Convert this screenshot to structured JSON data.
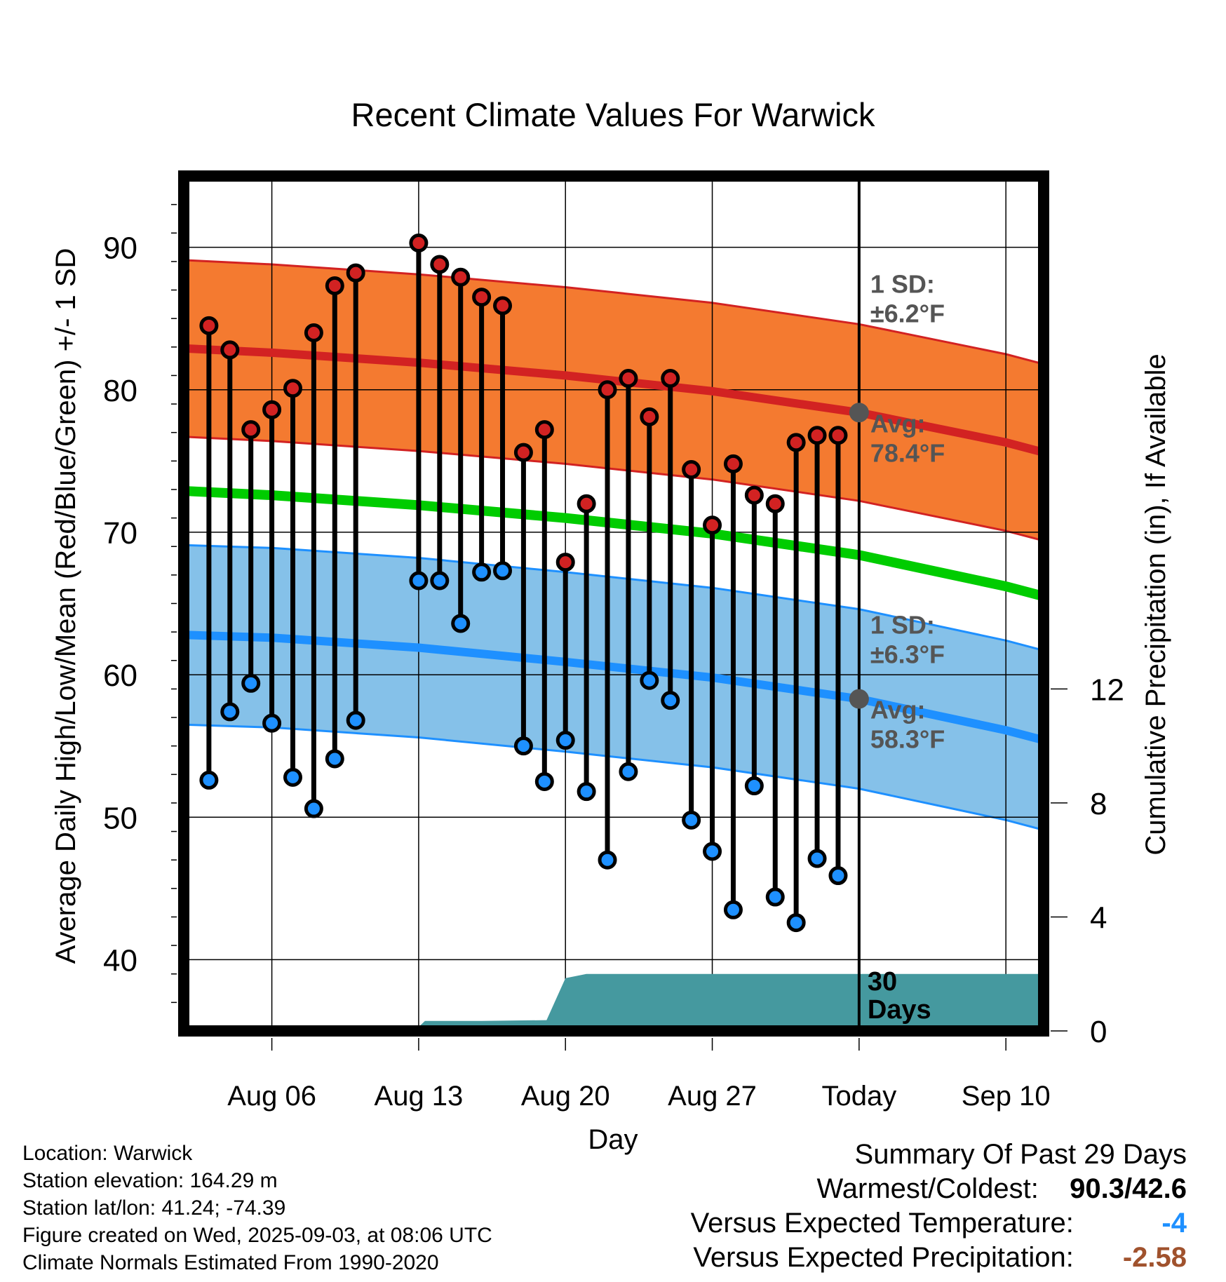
{
  "chart_data": {
    "type": "line",
    "title": "Recent Climate Values For Warwick",
    "xlabel": "Day",
    "ylabel_left": "Average Daily High/Low/Mean (Red/Blue/Green) +/- 1 SD",
    "ylabel_right": "Cumulative Precipitation (in), If Available",
    "x_tick_labels": [
      "Aug 06",
      "Aug 13",
      "Aug 20",
      "Aug 27",
      "Today",
      "Sep 10"
    ],
    "x_tick_days": [
      6,
      13,
      20,
      27,
      34,
      41
    ],
    "x_range_days": [
      1.8,
      42.8
    ],
    "y_left_range": [
      35,
      95
    ],
    "y_left_ticks": [
      40,
      50,
      60,
      70,
      80,
      90
    ],
    "y_right_range": [
      0,
      30
    ],
    "y_right_ticks": [
      0,
      4,
      8,
      12
    ],
    "grid": true,
    "today_day": 34,
    "today_label_value": "30",
    "today_label_unit": "Days",
    "normal_days": [
      1.8,
      6,
      13,
      20,
      27,
      34,
      41,
      42.8
    ],
    "normal_high": [
      82.9,
      82.6,
      81.9,
      81.0,
      79.9,
      78.4,
      76.3,
      75.6
    ],
    "normal_high_sd": 6.2,
    "normal_low": [
      62.8,
      62.6,
      61.9,
      60.9,
      59.8,
      58.3,
      56.1,
      55.4
    ],
    "normal_low_sd": 6.3,
    "normal_mean": [
      72.9,
      72.6,
      71.9,
      71.0,
      69.9,
      68.4,
      66.2,
      65.5
    ],
    "annotations": {
      "high_sd_label": "1 SD:",
      "high_sd_value": "±6.2°F",
      "high_avg_label": "Avg:",
      "high_avg_value": "78.4°F",
      "low_sd_label": "1 SD:",
      "low_sd_value": "±6.3°F",
      "low_avg_label": "Avg:",
      "low_avg_value": "58.3°F"
    },
    "daily_days": [
      3,
      4,
      5,
      6,
      7,
      8,
      9,
      10,
      11,
      13,
      14,
      15,
      16,
      17,
      18,
      19,
      20,
      21,
      22,
      23,
      24,
      25,
      26,
      27,
      28,
      29,
      30,
      31,
      32,
      33
    ],
    "daily_high": [
      84.5,
      82.8,
      77.2,
      78.6,
      80.1,
      84.0,
      87.3,
      88.2,
      null,
      90.3,
      88.8,
      87.9,
      86.5,
      85.9,
      75.6,
      77.2,
      67.9,
      72.0,
      80.0,
      80.8,
      78.1,
      80.8,
      74.4,
      70.5,
      74.8,
      72.6,
      72.0,
      76.3,
      76.8,
      76.8
    ],
    "daily_low": [
      52.6,
      57.4,
      59.4,
      56.6,
      52.8,
      50.6,
      54.1,
      56.8,
      null,
      66.6,
      66.6,
      63.6,
      67.2,
      67.3,
      55.0,
      52.5,
      55.4,
      51.8,
      47.0,
      53.2,
      59.6,
      58.2,
      49.8,
      47.6,
      43.5,
      52.2,
      44.4,
      42.6,
      47.1,
      45.9
    ],
    "precip_days": [
      1.8,
      12.8,
      13.3,
      16,
      19.1,
      20,
      21,
      42.8
    ],
    "precip_cum": [
      0,
      0,
      0.35,
      0.35,
      0.38,
      1.85,
      2.0,
      2.0
    ]
  },
  "info": {
    "location": "Location: Warwick",
    "elevation": "Station elevation: 164.29 m",
    "latlon": "Station lat/lon: 41.24; -74.39",
    "created": "Figure created on Wed, 2025-09-03, at 08:06 UTC",
    "normals": "Climate Normals Estimated From 1990-2020"
  },
  "summary": {
    "title": "Summary Of Past 29 Days",
    "warmest_label": "Warmest/Coldest:",
    "warmest_value": "90.3/42.6",
    "temp_label": "Versus Expected Temperature:",
    "temp_value": "-4",
    "temp_color": "#1e90ff",
    "precip_label": "Versus Expected Precipitation:",
    "precip_value": "-2.58",
    "precip_color": "#a0522d"
  },
  "colors": {
    "high_band": "#f47a30",
    "high_line": "#d22222",
    "low_band": "#85c1e9",
    "low_line": "#1e90ff",
    "mean_line": "#00cc00",
    "precip_fill": "#45999f",
    "high_marker": "#d22222",
    "low_marker": "#1e90ff",
    "avg_marker": "#555555",
    "annotation_text": "#555555"
  }
}
